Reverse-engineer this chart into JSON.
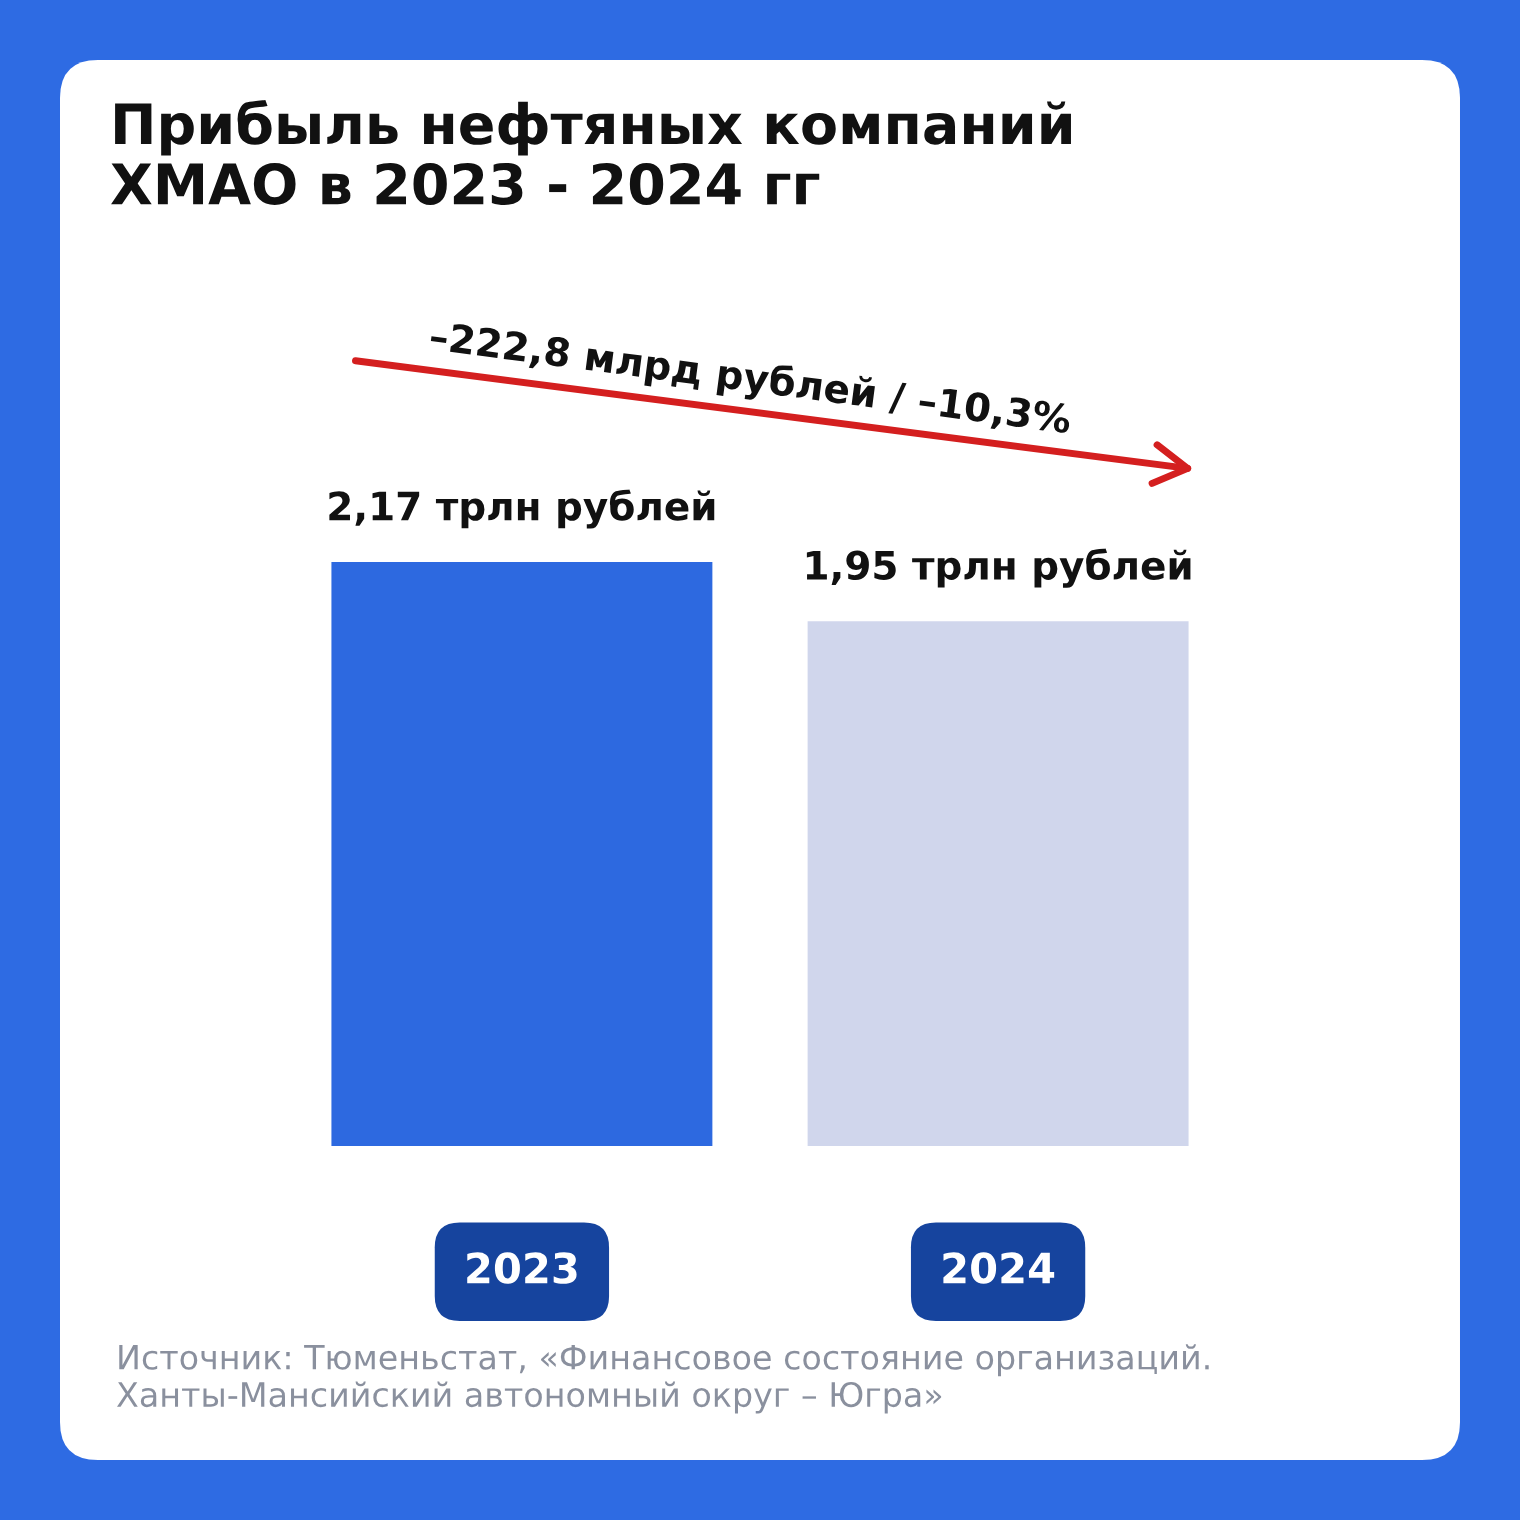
{
  "chart_data": {
    "type": "bar",
    "title": "Прибыль нефтяных компаний\nХМАО в 2023 - 2024 гг",
    "categories": [
      "2023",
      "2024"
    ],
    "values": [
      2.17,
      1.95
    ],
    "colors": [
      "#2d69e0",
      "#d0d6ec"
    ],
    "value_labels": [
      "2,17 трлн рублей",
      "1,95 трлн рублей"
    ],
    "annotations": [
      "–222,8 млрд рублей / –10,3%",
      "Источник: Тюменьстат, «Финансовое состояние организаций.\nХанты-Мансийский автономный округ – Югра»"
    ],
    "legend": false
  }
}
